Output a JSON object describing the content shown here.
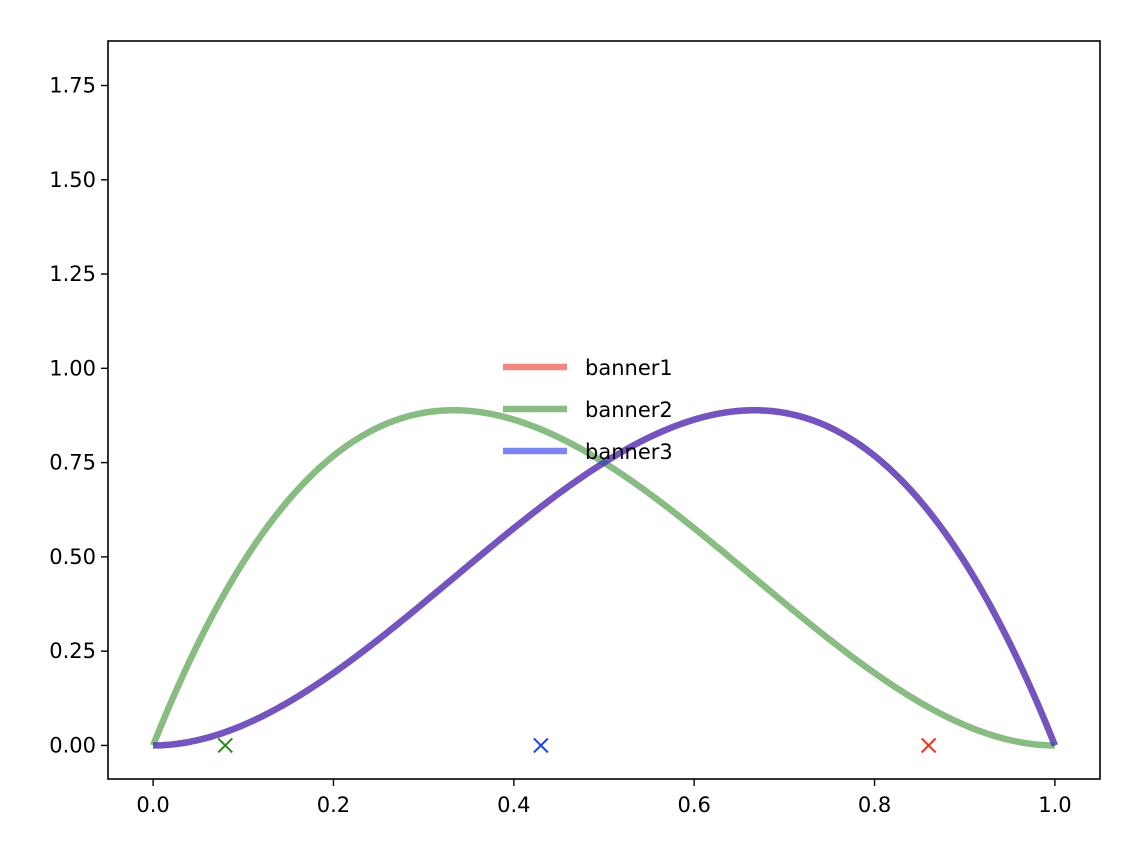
{
  "chart_data": {
    "type": "line",
    "title": "",
    "xlabel": "",
    "ylabel": "",
    "xlim": [
      -0.05,
      1.05
    ],
    "ylim": [
      -0.089,
      1.868
    ],
    "xticks": [
      0.0,
      0.2,
      0.4,
      0.6,
      0.8,
      1.0
    ],
    "xtick_labels": [
      "0.0",
      "0.2",
      "0.4",
      "0.6",
      "0.8",
      "1.0"
    ],
    "yticks": [
      0.0,
      0.25,
      0.5,
      0.75,
      1.0,
      1.25,
      1.5,
      1.75
    ],
    "ytick_labels": [
      "0.00",
      "0.25",
      "0.50",
      "0.75",
      "1.00",
      "1.25",
      "1.50",
      "1.75"
    ],
    "grid": false,
    "legend_position": "center",
    "series": [
      {
        "name": "banner1",
        "color": "#e8332a",
        "alpha": 0.6,
        "formula": "6*x^2*(1-x)",
        "x": [
          0.0,
          0.1,
          0.2,
          0.3,
          0.4,
          0.5,
          0.6,
          0.7,
          0.8,
          0.9,
          1.0
        ],
        "y": [
          0.0,
          0.054,
          0.192,
          0.378,
          0.576,
          0.75,
          0.864,
          0.882,
          0.768,
          0.486,
          0.0
        ]
      },
      {
        "name": "banner2",
        "color": "#3a8f2e",
        "alpha": 0.6,
        "formula": "6*x*(1-x)^2",
        "x": [
          0.0,
          0.1,
          0.2,
          0.3,
          0.4,
          0.5,
          0.6,
          0.7,
          0.8,
          0.9,
          1.0
        ],
        "y": [
          0.0,
          0.486,
          0.768,
          0.882,
          0.864,
          0.75,
          0.576,
          0.378,
          0.192,
          0.054,
          0.0
        ]
      },
      {
        "name": "banner3",
        "color": "#2233e8",
        "alpha": 0.6,
        "formula": "6*x^2*(1-x)",
        "x": [
          0.0,
          0.1,
          0.2,
          0.3,
          0.4,
          0.5,
          0.6,
          0.7,
          0.8,
          0.9,
          1.0
        ],
        "y": [
          0.0,
          0.054,
          0.192,
          0.378,
          0.576,
          0.75,
          0.864,
          0.882,
          0.768,
          0.486,
          0.0
        ]
      }
    ],
    "markers": [
      {
        "x": 0.08,
        "y": 0.0,
        "color": "#2a8a1e",
        "symbol": "x"
      },
      {
        "x": 0.43,
        "y": 0.0,
        "color": "#1f3fe0",
        "symbol": "x"
      },
      {
        "x": 0.86,
        "y": 0.0,
        "color": "#e8331f",
        "symbol": "x"
      }
    ]
  }
}
